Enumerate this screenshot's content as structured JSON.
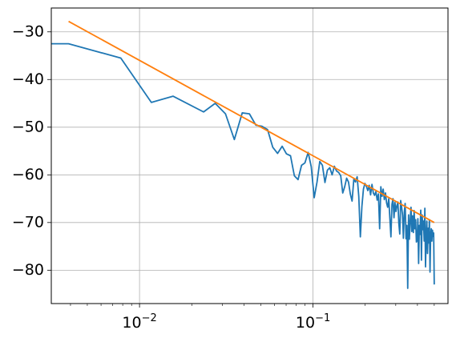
{
  "chart_data": {
    "type": "line",
    "title": "",
    "xlabel": "",
    "ylabel": "",
    "x_scale": "log",
    "xlim": [
      0.0031,
      0.6
    ],
    "ylim": [
      -87,
      -25
    ],
    "grid": true,
    "x_ticks": [
      {
        "value": 0.01,
        "base": "10",
        "exp": "−2"
      },
      {
        "value": 0.1,
        "base": "10",
        "exp": "−1"
      }
    ],
    "y_ticks": [
      {
        "value": -30,
        "label": "−30"
      },
      {
        "value": -40,
        "label": "−40"
      },
      {
        "value": -50,
        "label": "−50"
      },
      {
        "value": -60,
        "label": "−60"
      },
      {
        "value": -70,
        "label": "−70"
      },
      {
        "value": -80,
        "label": "−80"
      }
    ],
    "series": [
      {
        "color": "#1f77b4",
        "x": [
          0.0031,
          0.0039,
          0.0078,
          0.0117,
          0.0156,
          0.0234,
          0.0273,
          0.0313,
          0.0352,
          0.0391,
          0.043,
          0.0469,
          0.0508,
          0.0547,
          0.0586,
          0.0625,
          0.0664,
          0.0703,
          0.0742,
          0.0781,
          0.082,
          0.0859,
          0.0898,
          0.0938,
          0.0977,
          0.1016,
          0.1055,
          0.1094,
          0.1133,
          0.1172,
          0.1211,
          0.125,
          0.1289,
          0.1328,
          0.1367,
          0.1406,
          0.1445,
          0.1484,
          0.1523,
          0.1563,
          0.1602,
          0.1641,
          0.168,
          0.1719,
          0.1758,
          0.1797,
          0.1836,
          0.1875,
          0.1914,
          0.1953,
          0.1992,
          0.2031,
          0.207,
          0.2109,
          0.2148,
          0.2188,
          0.2227,
          0.2266,
          0.2305,
          0.2344,
          0.2383,
          0.2422,
          0.2461,
          0.25,
          0.2539,
          0.2578,
          0.2617,
          0.2656,
          0.2695,
          0.2734,
          0.2773,
          0.2813,
          0.2852,
          0.2891,
          0.293,
          0.2969,
          0.3008,
          0.3047,
          0.3086,
          0.3125,
          0.3164,
          0.3203,
          0.3242,
          0.3281,
          0.332,
          0.3359,
          0.3398,
          0.3438,
          0.3477,
          0.3516,
          0.3555,
          0.3594,
          0.3633,
          0.3672,
          0.3711,
          0.375,
          0.3789,
          0.3828,
          0.3867,
          0.3906,
          0.3945,
          0.3984,
          0.4023,
          0.4063,
          0.4102,
          0.4141,
          0.418,
          0.4219,
          0.4258,
          0.4297,
          0.4336,
          0.4375,
          0.4414,
          0.4453,
          0.4492,
          0.4531,
          0.457,
          0.4609,
          0.4648,
          0.4688,
          0.4727,
          0.4766,
          0.4805,
          0.4844,
          0.4883,
          0.4922,
          0.4961,
          0.5
        ],
        "y": [
          -32.5,
          -32.5,
          -35.5,
          -44.8,
          -43.5,
          -46.8,
          -45.0,
          -47.2,
          -52.6,
          -47.0,
          -47.2,
          -49.6,
          -49.8,
          -50.5,
          -54.2,
          -55.5,
          -54.0,
          -55.6,
          -56.0,
          -60.2,
          -61.0,
          -58.0,
          -57.5,
          -55.3,
          -58.3,
          -64.8,
          -61.5,
          -57.2,
          -58.0,
          -61.6,
          -59.0,
          -58.5,
          -60.0,
          -58.2,
          -59.2,
          -59.5,
          -60.2,
          -63.8,
          -62.5,
          -60.7,
          -61.5,
          -64.0,
          -65.5,
          -60.9,
          -61.5,
          -60.4,
          -64.5,
          -73.0,
          -66.6,
          -63.0,
          -61.8,
          -62.4,
          -63.3,
          -62.2,
          -64.2,
          -62.0,
          -63.8,
          -64.3,
          -63.5,
          -65.3,
          -64.0,
          -71.3,
          -62.5,
          -64.5,
          -63.0,
          -65.2,
          -63.8,
          -65.9,
          -66.8,
          -65.0,
          -69.0,
          -73.0,
          -66.2,
          -65.0,
          -69.0,
          -65.8,
          -67.7,
          -66.5,
          -65.7,
          -70.2,
          -72.4,
          -65.4,
          -66.7,
          -68.4,
          -73.3,
          -67.9,
          -66.0,
          -73.4,
          -70.6,
          -83.8,
          -68.4,
          -73.5,
          -69.7,
          -66.8,
          -71.9,
          -68.6,
          -72.1,
          -67.5,
          -71.3,
          -69.4,
          -74.1,
          -73.8,
          -69.2,
          -78.6,
          -70.6,
          -72.5,
          -67.4,
          -77.9,
          -68.4,
          -71.5,
          -69.7,
          -73.9,
          -67.0,
          -79.3,
          -73.0,
          -69.7,
          -76.5,
          -71.2,
          -74.3,
          -69.4,
          -80.4,
          -72.8,
          -71.3,
          -73.9,
          -71.6,
          -72.9,
          -72.2,
          -83.0
        ]
      },
      {
        "color": "#ff7f0e",
        "x": [
          0.0039,
          0.5
        ],
        "y": [
          -27.8,
          -70.0
        ]
      }
    ]
  }
}
